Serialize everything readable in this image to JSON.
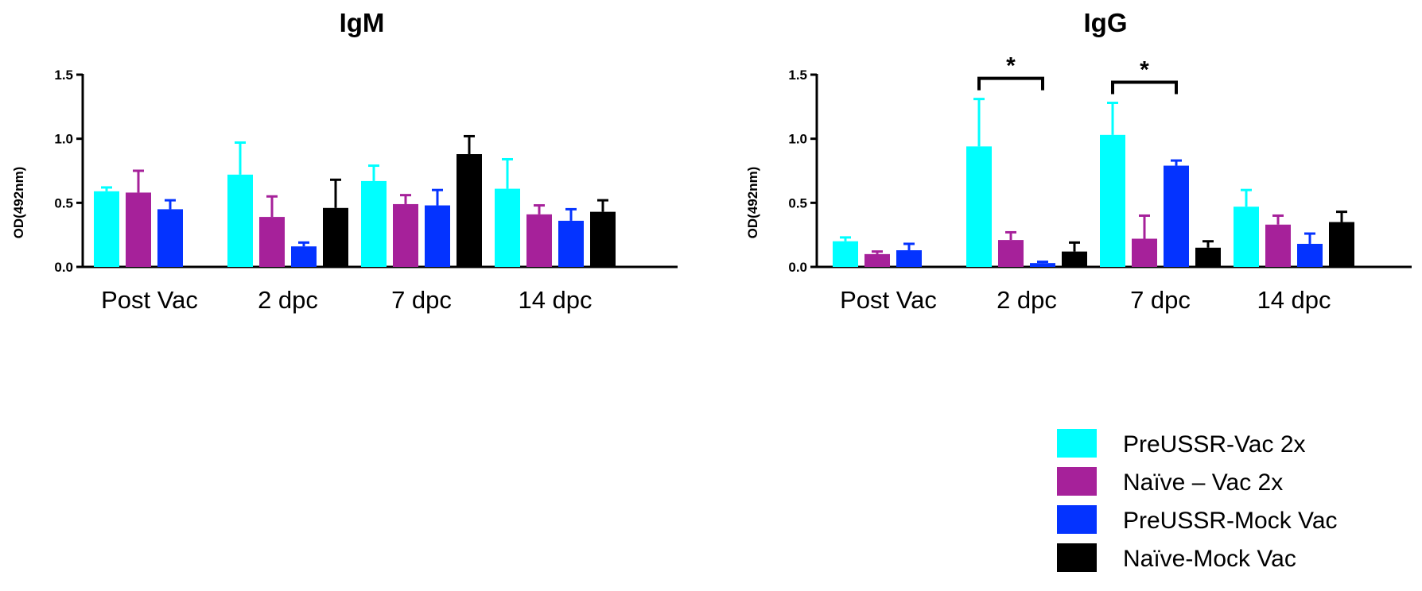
{
  "figure": {
    "legend": [
      {
        "label": "PreUSSR-Vac 2x",
        "color": "#00FFFF"
      },
      {
        "label": "Naïve – Vac 2x",
        "color": "#A6219A"
      },
      {
        "label": "PreUSSR-Mock Vac",
        "color": "#0433FF"
      },
      {
        "label": "Naïve-Mock Vac",
        "color": "#000000"
      }
    ]
  },
  "chart_data": [
    {
      "type": "bar",
      "title": "IgM",
      "xlabel": "",
      "ylabel": "OD(492nm)",
      "ylim": [
        0,
        1.5
      ],
      "yticks": [
        "0.0",
        "0.5",
        "1.0",
        "1.5"
      ],
      "categories": [
        "Post Vac",
        "2 dpc",
        "7 dpc",
        "14 dpc"
      ],
      "series": [
        {
          "name": "PreUSSR-Vac 2x",
          "values": [
            0.59,
            0.72,
            0.67,
            0.61
          ],
          "errors": [
            0.03,
            0.25,
            0.12,
            0.23
          ]
        },
        {
          "name": "Naïve – Vac 2x",
          "values": [
            0.58,
            0.39,
            0.49,
            0.41
          ],
          "errors": [
            0.17,
            0.16,
            0.07,
            0.07
          ]
        },
        {
          "name": "PreUSSR-Mock Vac",
          "values": [
            0.45,
            0.16,
            0.48,
            0.36
          ],
          "errors": [
            0.07,
            0.03,
            0.12,
            0.09
          ]
        },
        {
          "name": "Naïve-Mock Vac",
          "values": [
            null,
            0.46,
            0.88,
            0.43
          ],
          "errors": [
            null,
            0.22,
            0.14,
            0.09
          ]
        }
      ],
      "annotations": []
    },
    {
      "type": "bar",
      "title": "IgG",
      "xlabel": "",
      "ylabel": "OD(492nm)",
      "ylim": [
        0,
        1.5
      ],
      "yticks": [
        "0.0",
        "0.5",
        "1.0",
        "1.5"
      ],
      "categories": [
        "Post Vac",
        "2 dpc",
        "7 dpc",
        "14 dpc"
      ],
      "series": [
        {
          "name": "PreUSSR-Vac 2x",
          "values": [
            0.2,
            0.94,
            1.03,
            0.47
          ],
          "errors": [
            0.03,
            0.37,
            0.25,
            0.13
          ]
        },
        {
          "name": "Naïve – Vac 2x",
          "values": [
            0.1,
            0.21,
            0.22,
            0.33
          ],
          "errors": [
            0.02,
            0.06,
            0.18,
            0.07
          ]
        },
        {
          "name": "PreUSSR-Mock Vac",
          "values": [
            0.13,
            0.03,
            0.79,
            0.18
          ],
          "errors": [
            0.05,
            0.01,
            0.04,
            0.08
          ]
        },
        {
          "name": "Naïve-Mock Vac",
          "values": [
            null,
            0.12,
            0.15,
            0.35
          ],
          "errors": [
            null,
            0.07,
            0.05,
            0.08
          ]
        }
      ],
      "annotations": [
        {
          "type": "significance",
          "label": "*",
          "category": "2 dpc",
          "from_series": 0,
          "to_series": 2
        },
        {
          "type": "significance",
          "label": "*",
          "category": "7 dpc",
          "from_series": 0,
          "to_series": 2
        }
      ]
    }
  ]
}
